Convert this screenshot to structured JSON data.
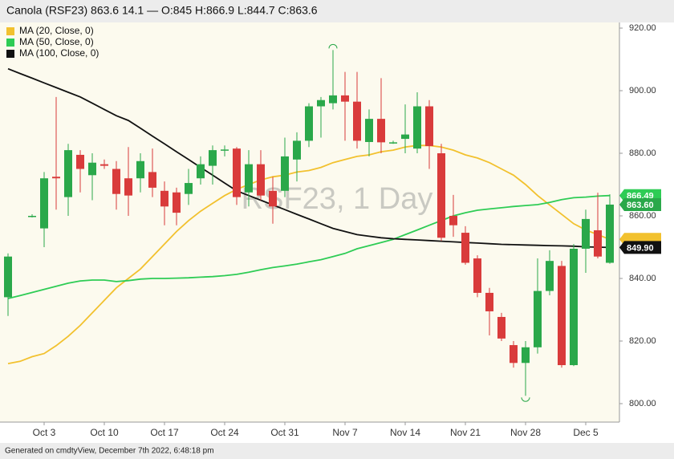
{
  "chart_data": {
    "type": "candlestick",
    "title": "Canola (RSF23) 863.6 14.1 — O:845 H:866.9 L:844.7 C:863.6",
    "watermark": "RSF23, 1 Day",
    "footer": "Generated on cmdtyView, December 7th 2022, 6:48:18 pm",
    "categories": [
      null,
      null,
      null,
      "Oct 3",
      null,
      null,
      null,
      null,
      "Oct 10",
      null,
      null,
      null,
      null,
      "Oct 17",
      null,
      null,
      null,
      null,
      "Oct 24",
      null,
      null,
      null,
      null,
      "Oct 31",
      null,
      null,
      null,
      null,
      "Nov 7",
      null,
      null,
      null,
      null,
      "Nov 14",
      null,
      null,
      null,
      null,
      "Nov 21",
      null,
      null,
      null,
      null,
      "Nov 28",
      null,
      null,
      null,
      null,
      "Dec 5",
      null,
      null
    ],
    "candles": {
      "up_color": "#2aa84a",
      "down_color": "#d93b3b",
      "end_label": "863.60",
      "open": [
        834,
        null,
        860,
        856,
        872.5,
        866,
        879.5,
        873,
        876.5,
        875,
        872,
        872,
        874,
        868,
        867.5,
        867,
        872,
        876,
        881,
        881.5,
        867.5,
        876.5,
        868,
        868,
        878,
        884,
        895,
        896,
        898.5,
        896.5,
        883.6,
        891,
        883.3,
        884.6,
        881.5,
        895,
        880,
        860,
        854.6,
        846.4,
        835.4,
        827.7,
        818.7,
        813,
        818,
        836,
        844,
        812.3,
        849.5,
        855.4,
        845
      ],
      "high": [
        848,
        null,
        860.5,
        874,
        898,
        883,
        881,
        880,
        878,
        877.5,
        882,
        880,
        881.5,
        871,
        869,
        875,
        879,
        882.5,
        882.5,
        882,
        881,
        881,
        872.5,
        885,
        886.7,
        896,
        898,
        913,
        906,
        906,
        894,
        904,
        884,
        895.6,
        899.5,
        897,
        883,
        866.7,
        856.7,
        847.4,
        837,
        829,
        820,
        820,
        846.4,
        849,
        845.6,
        851,
        862,
        867.4,
        866.9
      ],
      "low": [
        828,
        null,
        859.5,
        850,
        862,
        860,
        867.5,
        865,
        875,
        862,
        860,
        867.5,
        866,
        857,
        857,
        863.5,
        870,
        870,
        879,
        863.5,
        863,
        865,
        857.5,
        866,
        871,
        882,
        885,
        894,
        884,
        881.5,
        879,
        880,
        883,
        880,
        880,
        875,
        852,
        853.3,
        844.4,
        834,
        821.8,
        820,
        811.5,
        802.5,
        816,
        834.6,
        811.5,
        812,
        841.8,
        846.4,
        844.7
      ],
      "close": [
        847,
        null,
        860,
        872,
        872,
        881,
        875,
        877,
        876,
        867,
        866.5,
        877.5,
        869,
        863,
        861,
        870.5,
        876.5,
        881,
        881.2,
        866,
        876.5,
        866.5,
        863,
        879,
        884,
        895,
        897,
        898.5,
        896.5,
        884,
        891,
        883.5,
        883.5,
        886,
        895,
        882.3,
        853,
        857,
        845,
        835.4,
        829.5,
        820.8,
        813,
        818,
        836,
        845.6,
        812.3,
        849.5,
        859,
        847,
        863.6
      ]
    },
    "series": [
      {
        "name": "MA (20, Close, 0)",
        "color": "#f2c12e",
        "values": [
          812.8,
          813.5,
          815,
          816,
          818.5,
          821.5,
          825,
          829,
          833,
          837,
          840,
          843,
          847,
          851,
          855,
          858.5,
          861.5,
          864,
          866.5,
          868.5,
          870,
          871.5,
          872.5,
          873,
          874,
          874.5,
          875.5,
          877,
          878,
          879,
          879.5,
          880.5,
          881,
          882,
          882.5,
          882.5,
          882,
          881,
          879.5,
          878.5,
          877,
          875,
          873,
          870,
          866.5,
          863.5,
          860.5,
          857.5,
          855.5,
          854,
          852.5
        ]
      },
      {
        "name": "MA (50, Close, 0)",
        "color": "#2ecc55",
        "end_label": "866.49",
        "values": [
          833.6,
          834.5,
          835.5,
          836.5,
          837.5,
          838.5,
          839.2,
          839.5,
          839.5,
          839,
          839.3,
          839.8,
          840,
          840,
          840.1,
          840.2,
          840.4,
          840.6,
          840.9,
          841.3,
          842,
          842.8,
          843.5,
          844,
          844.6,
          845.3,
          846,
          847,
          848,
          849.5,
          850.5,
          851.5,
          852.5,
          854,
          855.5,
          857,
          858.5,
          860,
          861,
          861.8,
          862.2,
          862.6,
          863,
          863.3,
          863.6,
          864.3,
          865.2,
          865.8,
          866,
          866.3,
          866.49
        ]
      },
      {
        "name": "MA (100, Close, 0)",
        "color": "#111111",
        "end_label": "849.90",
        "values": [
          907,
          905.5,
          904,
          902.5,
          901,
          899.5,
          898,
          896,
          894,
          892,
          890.5,
          888,
          885.5,
          883,
          880.5,
          878,
          875.5,
          873,
          870.5,
          868,
          866.5,
          865,
          863.5,
          862,
          860.5,
          859,
          857.5,
          856,
          855,
          854,
          853.5,
          853,
          852.7,
          852.5,
          852.3,
          852.1,
          851.9,
          851.7,
          851.5,
          851.3,
          851.1,
          850.9,
          850.8,
          850.7,
          850.6,
          850.5,
          850.4,
          850.3,
          850.1,
          850,
          849.9
        ]
      }
    ],
    "ylim": [
      794.1,
      921.8
    ],
    "yticks": [
      {
        "value": 800,
        "label": "800.00"
      },
      {
        "value": 820,
        "label": "820.00"
      },
      {
        "value": 840,
        "label": "840.00"
      },
      {
        "value": 860,
        "label": "860.00"
      },
      {
        "value": 880,
        "label": "880.00"
      },
      {
        "value": 900,
        "label": "900.00"
      },
      {
        "value": 920,
        "label": "920.00"
      }
    ],
    "legend": "top-left"
  }
}
